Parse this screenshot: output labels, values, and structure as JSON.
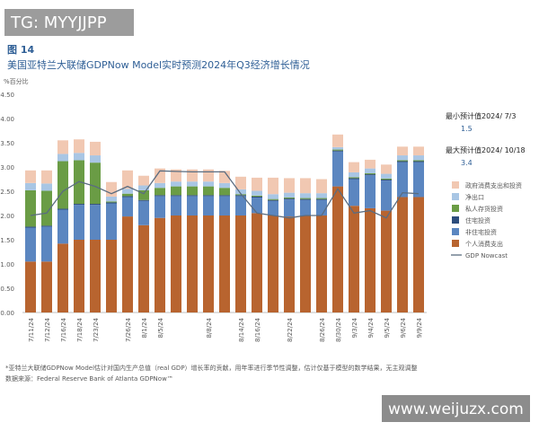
{
  "watermark_top": "TG: MYYJJPP",
  "figure_label": "图 14",
  "title": "美国亚特兰大联储GDPNow Model实时预测2024年Q3经济增长情况",
  "chart_data": {
    "type": "bar",
    "stacked": true,
    "y_label": "%百分比",
    "categories": [
      "7/11/24",
      "7/12/24",
      "7/16/24",
      "7/18/24",
      "7/23/24",
      null,
      "7/26/24",
      "8/1/24",
      "8/5/24",
      null,
      null,
      "8/8/24",
      null,
      "8/14/24",
      "8/16/24",
      null,
      "8/22/24",
      null,
      "8/26/24",
      "8/30/24",
      "9/3/24",
      "9/4/24",
      "9/5/24",
      "9/6/24",
      "9/9/24"
    ],
    "ylim": [
      0,
      4.5
    ],
    "yticks": [
      {
        "value": 0,
        "label": "0.00"
      },
      {
        "value": 0.5,
        "label": "0.50"
      },
      {
        "value": 1,
        "label": "1.00"
      },
      {
        "value": 1.5,
        "label": "1.50"
      },
      {
        "value": 2,
        "label": "2.00"
      },
      {
        "value": 2.5,
        "label": "2.50"
      },
      {
        "value": 3,
        "label": "3.00"
      },
      {
        "value": 3.5,
        "label": "3.50"
      },
      {
        "value": 4,
        "label": "4.00"
      },
      {
        "value": 4.5,
        "label": "4.50"
      }
    ],
    "grid": false,
    "legend": "right",
    "series": [
      {
        "name": "个人消费支出",
        "color": "#b8642f",
        "values": [
          1.05,
          1.05,
          1.42,
          1.5,
          1.5,
          1.5,
          1.98,
          1.8,
          1.95,
          2.0,
          2.0,
          2.0,
          2.0,
          2.0,
          2.05,
          2.0,
          1.98,
          2.0,
          2.0,
          2.6,
          2.2,
          2.15,
          2.1,
          2.38,
          2.38
        ]
      },
      {
        "name": "非住宅投资",
        "color": "#5b86c0",
        "values": [
          0.7,
          0.72,
          0.7,
          0.72,
          0.72,
          0.75,
          0.4,
          0.5,
          0.45,
          0.4,
          0.4,
          0.4,
          0.4,
          0.4,
          0.32,
          0.3,
          0.35,
          0.32,
          0.32,
          0.72,
          0.55,
          0.68,
          0.62,
          0.72,
          0.72
        ]
      },
      {
        "name": "住宅投资",
        "color": "#2d4d7c",
        "values": [
          0.02,
          0.02,
          0.02,
          0.02,
          0.02,
          0.02,
          0.02,
          0.02,
          0.02,
          0.02,
          0.02,
          0.02,
          0.02,
          0.02,
          0.02,
          0.02,
          0.02,
          0.02,
          0.02,
          0.02,
          0.02,
          0.02,
          0.02,
          0.02,
          0.02
        ]
      },
      {
        "name": "私人存货投资",
        "color": "#6a9c45",
        "values": [
          0.75,
          0.72,
          0.98,
          0.9,
          0.85,
          0.02,
          0.05,
          0.2,
          0.15,
          0.18,
          0.18,
          0.18,
          0.15,
          0.02,
          0.02,
          0.02,
          0.02,
          0.02,
          0.02,
          0.02,
          0.02,
          0.02,
          0.02,
          0.02,
          0.02
        ]
      },
      {
        "name": "净出口",
        "color": "#a9c6e4",
        "values": [
          0.15,
          0.15,
          0.15,
          0.15,
          0.15,
          0.1,
          0.1,
          0.1,
          0.1,
          0.1,
          0.1,
          0.1,
          0.1,
          0.1,
          0.1,
          0.1,
          0.1,
          0.1,
          0.1,
          0.05,
          0.1,
          0.1,
          0.1,
          0.1,
          0.1
        ]
      },
      {
        "name": "政府消费支出和投资",
        "color": "#f1c8b2",
        "values": [
          0.26,
          0.27,
          0.28,
          0.28,
          0.28,
          0.3,
          0.38,
          0.2,
          0.3,
          0.25,
          0.25,
          0.25,
          0.25,
          0.26,
          0.27,
          0.34,
          0.3,
          0.31,
          0.29,
          0.26,
          0.21,
          0.18,
          0.19,
          0.18,
          0.18
        ]
      },
      {
        "name": "GDP Nowcast",
        "type": "line",
        "color": "#5a6c80",
        "values": [
          2.0,
          2.05,
          2.5,
          2.7,
          2.6,
          2.45,
          2.6,
          2.45,
          2.92,
          2.91,
          2.9,
          2.9,
          2.9,
          2.45,
          2.05,
          2.0,
          1.95,
          2.0,
          2.0,
          2.55,
          2.05,
          2.1,
          1.95,
          2.47,
          2.45
        ]
      }
    ]
  },
  "annotations": {
    "min_label": "最小预计值2024/ 7/3",
    "min_value": "1.5",
    "max_label": "最大预计值2024/ 10/18",
    "max_value": "3.4"
  },
  "footnote": "*亚特兰大联储GDPNow Model估计对国内生产总值（real GDP）增长率的贡献，用年率进行季节性调整，估计仅基于模型的数学结果，无主观调整",
  "source": "数据来源：Federal Reserve Bank of Atlanta GDPNow™",
  "watermark_bottom": "www.weijuzx.com"
}
